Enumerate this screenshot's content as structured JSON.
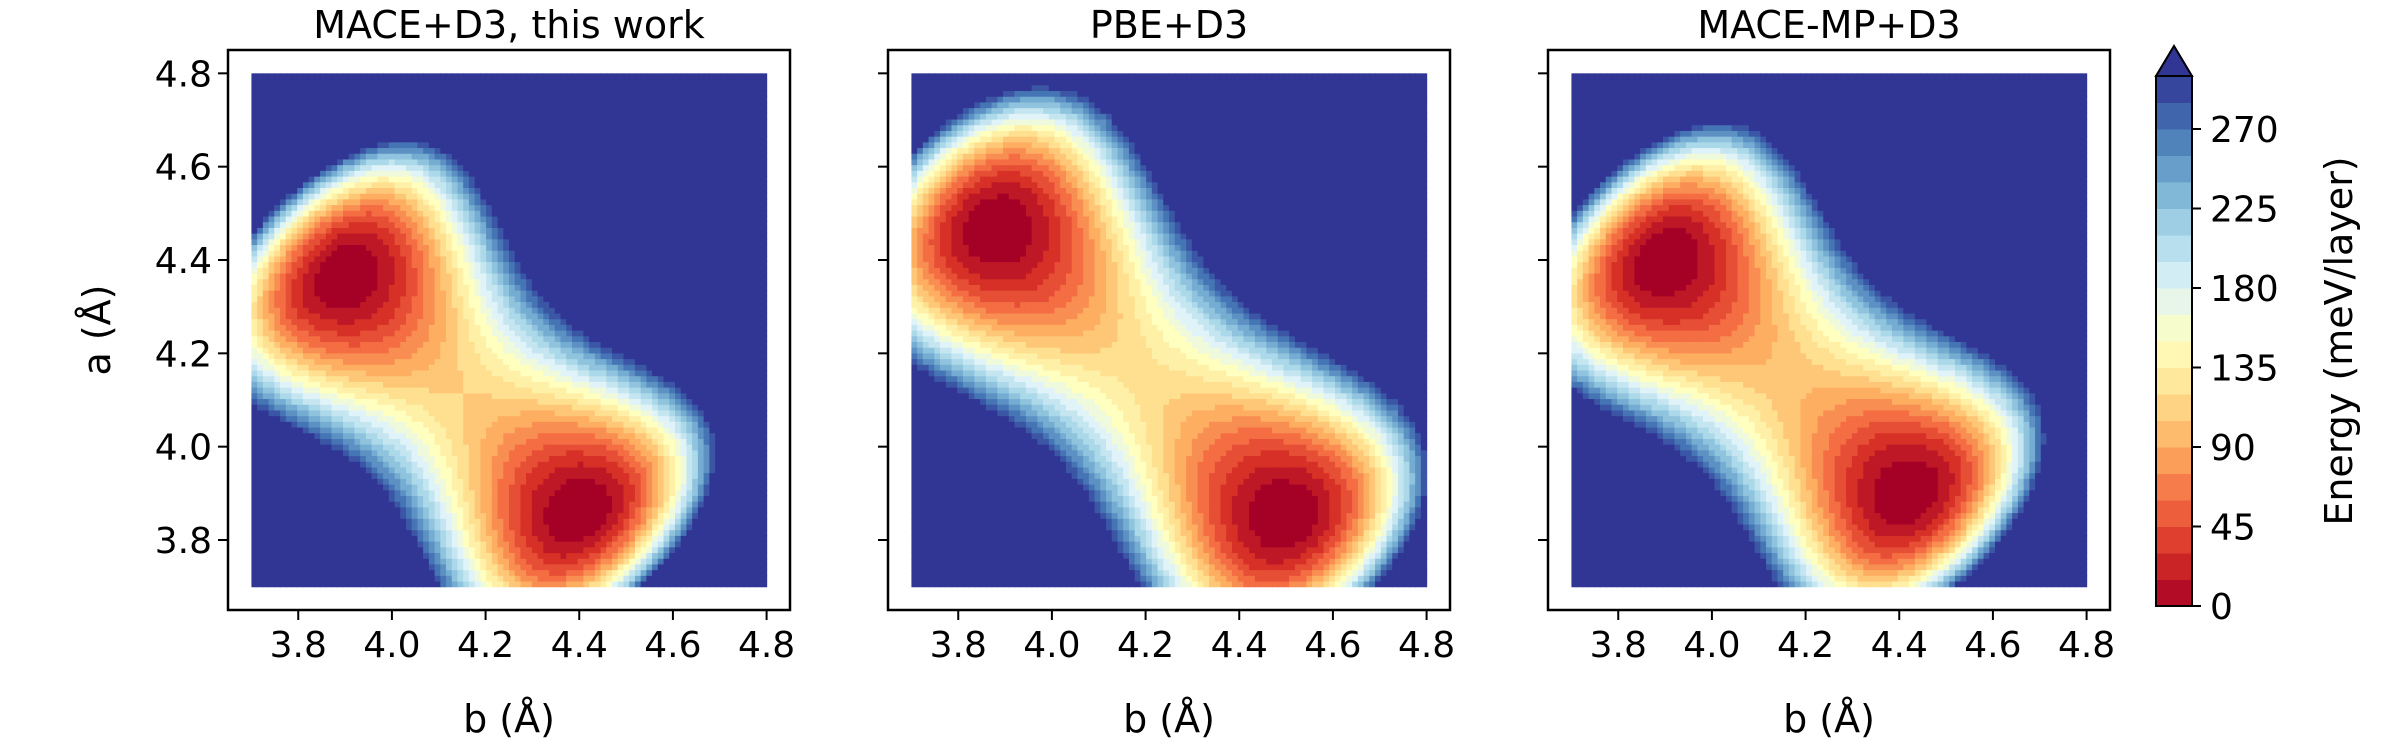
{
  "chart_data": {
    "type": "heatmap",
    "plot_style": "filled-contour",
    "colormap": "RdYlBu_r",
    "panels": [
      {
        "title": "MACE+D3, this work",
        "xlabel": "b (Å)",
        "ylabel": "a (Å)",
        "xlim": [
          3.7,
          4.8
        ],
        "ylim": [
          3.7,
          4.8
        ],
        "xticks": [
          "3.8",
          "4.0",
          "4.2",
          "4.4",
          "4.6",
          "4.8"
        ],
        "yticks": [
          "3.8",
          "4.0",
          "4.2",
          "4.4",
          "4.6",
          "4.8"
        ],
        "minima": [
          {
            "b": 3.9,
            "a": 4.37,
            "energy": 0
          },
          {
            "b": 4.4,
            "a": 3.86,
            "energy": 0
          }
        ],
        "saddle": {
          "b": 4.12,
          "a": 4.12,
          "energy": 120
        }
      },
      {
        "title": "PBE+D3",
        "xlabel": "b (Å)",
        "ylabel": "",
        "xlim": [
          3.7,
          4.8
        ],
        "ylim": [
          3.7,
          4.8
        ],
        "xticks": [
          "3.8",
          "4.0",
          "4.2",
          "4.4",
          "4.6",
          "4.8"
        ],
        "yticks": [],
        "minima": [
          {
            "b": 3.88,
            "a": 4.47,
            "energy": 0
          },
          {
            "b": 4.5,
            "a": 3.85,
            "energy": 0
          }
        ],
        "saddle": {
          "b": 4.13,
          "a": 4.13,
          "energy": 130
        }
      },
      {
        "title": "MACE-MP+D3",
        "xlabel": "b (Å)",
        "ylabel": "",
        "xlim": [
          3.7,
          4.8
        ],
        "ylim": [
          3.7,
          4.8
        ],
        "xticks": [
          "3.8",
          "4.0",
          "4.2",
          "4.4",
          "4.6",
          "4.8"
        ],
        "yticks": [],
        "minima": [
          {
            "b": 3.9,
            "a": 4.4,
            "energy": 0
          },
          {
            "b": 4.42,
            "a": 3.9,
            "energy": 0
          }
        ],
        "saddle": {
          "b": 4.18,
          "a": 4.2,
          "energy": 110
        }
      }
    ],
    "colorbar": {
      "label": "Energy (meV/layer)",
      "range": [
        0,
        300
      ],
      "ticks": [
        "0",
        "45",
        "90",
        "135",
        "180",
        "225",
        "270"
      ],
      "extend": "max",
      "levels": 20
    },
    "colors": {
      "low": "#a50026",
      "mid": "#ffffbf",
      "high": "#313695"
    }
  }
}
